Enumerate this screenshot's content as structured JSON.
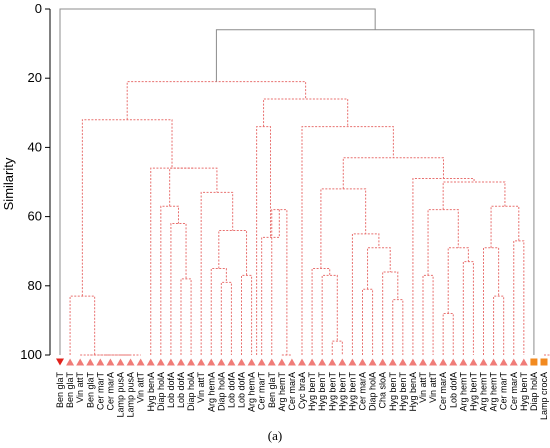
{
  "chart_data": {
    "type": "dendrogram",
    "ylabel": "Similarity",
    "panel_label": "(a)",
    "ylim": [
      0,
      100
    ],
    "yticks": [
      0,
      20,
      40,
      60,
      80,
      100
    ],
    "grid": false,
    "colors": {
      "cluster_link": "#e8706f",
      "root_link": "#8c8c8c",
      "axis": "#000000"
    },
    "leaves": [
      {
        "label": "Ben glaT",
        "marker": "triangle-down",
        "color": "#e0211b"
      },
      {
        "label": "Ben glaT",
        "marker": "triangle-up",
        "color": "#f07c78"
      },
      {
        "label": "Vin attT",
        "marker": "triangle-up",
        "color": "#f07c78"
      },
      {
        "label": "Ben glaT",
        "marker": "triangle-up",
        "color": "#f07c78"
      },
      {
        "label": "Cer marT",
        "marker": "triangle-up",
        "color": "#f07c78"
      },
      {
        "label": "Cer marA",
        "marker": "triangle-up",
        "color": "#f07c78"
      },
      {
        "label": "Lamp pusA",
        "marker": "triangle-up",
        "color": "#f07c78"
      },
      {
        "label": "Lamp pusA",
        "marker": "triangle-up",
        "color": "#f07c78"
      },
      {
        "label": "Vin attT",
        "marker": "triangle-up",
        "color": "#f07c78"
      },
      {
        "label": "Hyg benA",
        "marker": "triangle-up",
        "color": "#f07c78"
      },
      {
        "label": "Diap holA",
        "marker": "triangle-up",
        "color": "#f07c78"
      },
      {
        "label": "Lob dofA",
        "marker": "triangle-up",
        "color": "#f07c78"
      },
      {
        "label": "Lob dofA",
        "marker": "triangle-up",
        "color": "#f07c78"
      },
      {
        "label": "Diap holA",
        "marker": "triangle-up",
        "color": "#f07c78"
      },
      {
        "label": "Vin attT",
        "marker": "triangle-up",
        "color": "#f07c78"
      },
      {
        "label": "Arg hemA",
        "marker": "triangle-up",
        "color": "#f07c78"
      },
      {
        "label": "Diap holA",
        "marker": "triangle-up",
        "color": "#f07c78"
      },
      {
        "label": "Lob dofA",
        "marker": "triangle-up",
        "color": "#f07c78"
      },
      {
        "label": "Lob dofA",
        "marker": "triangle-up",
        "color": "#f07c78"
      },
      {
        "label": "Arg hemA",
        "marker": "triangle-up",
        "color": "#f07c78"
      },
      {
        "label": "Cer marT",
        "marker": "triangle-up",
        "color": "#f07c78"
      },
      {
        "label": "Ben glaT",
        "marker": "triangle-up",
        "color": "#f07c78"
      },
      {
        "label": "Arg hemT",
        "marker": "triangle-up",
        "color": "#f07c78"
      },
      {
        "label": "Cer marA",
        "marker": "triangle-up",
        "color": "#f07c78"
      },
      {
        "label": "Cyc braA",
        "marker": "triangle-up",
        "color": "#f07c78"
      },
      {
        "label": "Hyg benT",
        "marker": "triangle-up",
        "color": "#f07c78"
      },
      {
        "label": "Hyg benT",
        "marker": "triangle-up",
        "color": "#f07c78"
      },
      {
        "label": "Hyg benT",
        "marker": "triangle-up",
        "color": "#f07c78"
      },
      {
        "label": "Hyg benT",
        "marker": "triangle-up",
        "color": "#f07c78"
      },
      {
        "label": "Hyg benT",
        "marker": "triangle-up",
        "color": "#f07c78"
      },
      {
        "label": "Cer marA",
        "marker": "triangle-up",
        "color": "#f07c78"
      },
      {
        "label": "Diap holA",
        "marker": "triangle-up",
        "color": "#f07c78"
      },
      {
        "label": "Cha sloA",
        "marker": "triangle-up",
        "color": "#f07c78"
      },
      {
        "label": "Hyg benT",
        "marker": "triangle-up",
        "color": "#f07c78"
      },
      {
        "label": "Hyg benT",
        "marker": "triangle-up",
        "color": "#f07c78"
      },
      {
        "label": "Hyg benA",
        "marker": "triangle-up",
        "color": "#f07c78"
      },
      {
        "label": "Vin attT",
        "marker": "triangle-up",
        "color": "#f07c78"
      },
      {
        "label": "Vin attT",
        "marker": "triangle-up",
        "color": "#f07c78"
      },
      {
        "label": "Cer marA",
        "marker": "triangle-up",
        "color": "#f07c78"
      },
      {
        "label": "Lob dofA",
        "marker": "triangle-up",
        "color": "#f07c78"
      },
      {
        "label": "Arg hemT",
        "marker": "triangle-up",
        "color": "#f07c78"
      },
      {
        "label": "Hyg benT",
        "marker": "triangle-up",
        "color": "#f07c78"
      },
      {
        "label": "Arg hemT",
        "marker": "triangle-up",
        "color": "#f07c78"
      },
      {
        "label": "Arg hemT",
        "marker": "triangle-up",
        "color": "#f07c78"
      },
      {
        "label": "Cer marT",
        "marker": "triangle-up",
        "color": "#f07c78"
      },
      {
        "label": "Cer marA",
        "marker": "triangle-up",
        "color": "#f07c78"
      },
      {
        "label": "Hyg benT",
        "marker": "triangle-up",
        "color": "#f07c78"
      },
      {
        "label": "Diap holA",
        "marker": "square",
        "color": "#f28a1f"
      },
      {
        "label": "Lamp crocA",
        "marker": "square",
        "color": "#f28a1f"
      }
    ],
    "merges": [
      {
        "id": "A1",
        "children": [
          4,
          5
        ],
        "similarity": 100
      },
      {
        "id": "A2",
        "children": [
          6,
          7
        ],
        "similarity": 100
      },
      {
        "id": "A3",
        "children": [
          "A1",
          "A2"
        ],
        "similarity": 100
      },
      {
        "id": "A4",
        "children": [
          "A3",
          8
        ],
        "similarity": 100
      },
      {
        "id": "A5",
        "children": [
          3,
          "A4"
        ],
        "similarity": 100
      },
      {
        "id": "A6",
        "children": [
          2,
          "A5"
        ],
        "similarity": 100
      },
      {
        "id": "A7",
        "children": [
          1,
          "A6"
        ],
        "similarity": 83
      },
      {
        "id": "L1",
        "children": [
          12,
          13
        ],
        "similarity": 78
      },
      {
        "id": "L2",
        "children": [
          11,
          "L1"
        ],
        "similarity": 62
      },
      {
        "id": "L3",
        "children": [
          10,
          "L2"
        ],
        "similarity": 57
      },
      {
        "id": "L4",
        "children": [
          16,
          17
        ],
        "similarity": 79
      },
      {
        "id": "L5",
        "children": [
          15,
          "L4"
        ],
        "similarity": 75
      },
      {
        "id": "L6",
        "children": [
          18,
          19
        ],
        "similarity": 77
      },
      {
        "id": "L7",
        "children": [
          "L5",
          "L6"
        ],
        "similarity": 64
      },
      {
        "id": "L8",
        "children": [
          14,
          "L7"
        ],
        "similarity": 53
      },
      {
        "id": "L9",
        "children": [
          "L3",
          "L8"
        ],
        "similarity": 46
      },
      {
        "id": "L10",
        "children": [
          9,
          "L9"
        ],
        "similarity": 46
      },
      {
        "id": "B1",
        "children": [
          "A7",
          "L10"
        ],
        "similarity": 32
      },
      {
        "id": "R1",
        "children": [
          22,
          23
        ],
        "similarity": 100
      },
      {
        "id": "R2",
        "children": [
          21,
          "R1"
        ],
        "similarity": 58
      },
      {
        "id": "R3",
        "children": [
          20,
          "R2"
        ],
        "similarity": 66
      },
      {
        "id": "R4",
        "children": [
          19.5,
          "R3"
        ],
        "similarity": 34
      },
      {
        "id": "C1",
        "children": [
          27,
          28
        ],
        "similarity": 96
      },
      {
        "id": "C2",
        "children": [
          26,
          "C1"
        ],
        "similarity": 77
      },
      {
        "id": "C3",
        "children": [
          25,
          "C2"
        ],
        "similarity": 75
      },
      {
        "id": "C4",
        "children": [
          30,
          31
        ],
        "similarity": 81
      },
      {
        "id": "C5",
        "children": [
          33,
          34
        ],
        "similarity": 84
      },
      {
        "id": "C6",
        "children": [
          32,
          "C5"
        ],
        "similarity": 76
      },
      {
        "id": "C7",
        "children": [
          "C4",
          "C6"
        ],
        "similarity": 69
      },
      {
        "id": "C8",
        "children": [
          29,
          "C7"
        ],
        "similarity": 65
      },
      {
        "id": "C9",
        "children": [
          "C3",
          "C8"
        ],
        "similarity": 52
      },
      {
        "id": "D1",
        "children": [
          36,
          37
        ],
        "similarity": 77
      },
      {
        "id": "D2",
        "children": [
          38,
          39
        ],
        "similarity": 88
      },
      {
        "id": "D3",
        "children": [
          40,
          41
        ],
        "similarity": 73
      },
      {
        "id": "D4",
        "children": [
          "D2",
          "D3"
        ],
        "similarity": 69
      },
      {
        "id": "D5",
        "children": [
          "D1",
          "D4"
        ],
        "similarity": 58
      },
      {
        "id": "D6",
        "children": [
          43,
          44
        ],
        "similarity": 83
      },
      {
        "id": "D7",
        "children": [
          42,
          "D6"
        ],
        "similarity": 69
      },
      {
        "id": "D8",
        "children": [
          45,
          46
        ],
        "similarity": 67
      },
      {
        "id": "D9",
        "children": [
          "D7",
          "D8"
        ],
        "similarity": 57
      },
      {
        "id": "D10",
        "children": [
          "D5",
          "D9"
        ],
        "similarity": 50
      },
      {
        "id": "D11",
        "children": [
          35,
          "D10"
        ],
        "similarity": 49
      },
      {
        "id": "D12",
        "children": [
          "C9",
          "D11"
        ],
        "similarity": 43
      },
      {
        "id": "D13",
        "children": [
          24,
          "D12"
        ],
        "similarity": 34
      },
      {
        "id": "E1",
        "children": [
          "R4",
          "D13"
        ],
        "similarity": 26
      },
      {
        "id": "F1",
        "children": [
          "B1",
          "E1"
        ],
        "similarity": 21
      },
      {
        "id": "G1",
        "children": [
          "F1",
          47
        ],
        "similarity": 6
      },
      {
        "id": "G2",
        "children": [
          48,
          49
        ],
        "similarity": 100
      },
      {
        "id": "ROOT",
        "children": [
          0,
          "G1"
        ],
        "similarity": 0
      }
    ]
  }
}
